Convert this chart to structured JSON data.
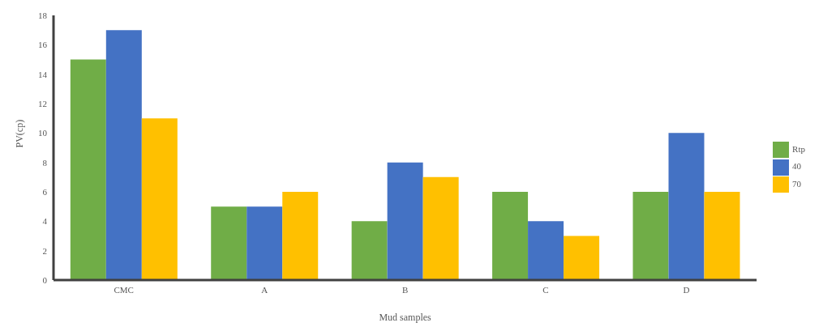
{
  "chart_data": {
    "type": "bar",
    "xlabel": "Mud samples",
    "ylabel": "PV(cp)",
    "categories": [
      "CMC",
      "A",
      "B",
      "C",
      "D"
    ],
    "series": [
      {
        "name": "Rtp",
        "color": "#70ad47",
        "values": [
          15,
          5,
          4,
          6,
          6
        ]
      },
      {
        "name": "40",
        "color": "#4472c4",
        "values": [
          17,
          5,
          8,
          4,
          10
        ]
      },
      {
        "name": "70",
        "color": "#ffc000",
        "values": [
          11,
          6,
          7,
          3,
          6
        ]
      }
    ],
    "ylim": [
      0,
      18
    ],
    "yticks": [
      0,
      2,
      4,
      6,
      8,
      10,
      12,
      14,
      16,
      18
    ],
    "grid": false,
    "legend": "right"
  }
}
